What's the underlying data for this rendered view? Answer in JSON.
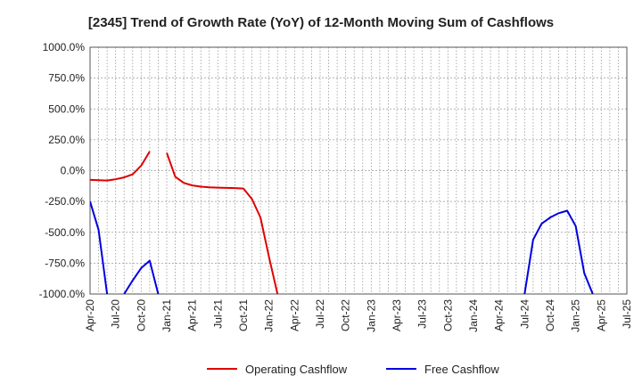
{
  "chart_data": {
    "type": "line",
    "title": "[2345]  Trend of Growth Rate (YoY) of 12-Month Moving Sum of Cashflows",
    "xlabel": "",
    "ylabel": "",
    "ylim": [
      -1000,
      1000
    ],
    "y_ticks": [
      1000,
      750,
      500,
      250,
      0,
      -250,
      -500,
      -750,
      -1000
    ],
    "y_tick_labels": [
      "1000.0%",
      "750.0%",
      "500.0%",
      "250.0%",
      "0.0%",
      "-250.0%",
      "-500.0%",
      "-750.0%",
      "-1000.0%"
    ],
    "x_tick_labels": [
      "Apr-20",
      "Jul-20",
      "Oct-20",
      "Jan-21",
      "Apr-21",
      "Jul-21",
      "Oct-21",
      "Jan-22",
      "Apr-22",
      "Jul-22",
      "Oct-22",
      "Jan-23",
      "Apr-23",
      "Jul-23",
      "Oct-23",
      "Jan-24",
      "Apr-24",
      "Jul-24",
      "Oct-24",
      "Jan-25",
      "Apr-25",
      "Jul-25"
    ],
    "x_range": [
      "Apr-20",
      "Jul-25"
    ],
    "grid": true,
    "legend_position": "bottom",
    "series": [
      {
        "name": "Operating Cashflow",
        "color": "#e00000",
        "points": [
          [
            "Apr-20",
            -75
          ],
          [
            "May-20",
            -78
          ],
          [
            "Jun-20",
            -80
          ],
          [
            "Jul-20",
            -70
          ],
          [
            "Aug-20",
            -55
          ],
          [
            "Sep-20",
            -30
          ],
          [
            "Oct-20",
            40
          ],
          [
            "Nov-20",
            155
          ],
          [
            "Dec-20",
            null
          ],
          [
            "Jan-21",
            145
          ],
          [
            "Feb-21",
            -50
          ],
          [
            "Mar-21",
            -100
          ],
          [
            "Apr-21",
            -120
          ],
          [
            "May-21",
            -130
          ],
          [
            "Jun-21",
            -135
          ],
          [
            "Jul-21",
            -138
          ],
          [
            "Aug-21",
            -140
          ],
          [
            "Sep-21",
            -142
          ],
          [
            "Oct-21",
            -145
          ],
          [
            "Nov-21",
            -230
          ],
          [
            "Dec-21",
            -380
          ],
          [
            "Jan-22",
            -700
          ],
          [
            "Feb-22",
            -1000
          ]
        ]
      },
      {
        "name": "Free Cashflow",
        "color": "#0000e0",
        "points": [
          [
            "Apr-20",
            -250
          ],
          [
            "May-20",
            -480
          ],
          [
            "Jun-20",
            -1000
          ],
          [
            "Jul-20",
            null
          ],
          [
            "Aug-20",
            -1000
          ],
          [
            "Sep-20",
            -890
          ],
          [
            "Oct-20",
            -790
          ],
          [
            "Nov-20",
            -730
          ],
          [
            "Dec-20",
            -1000
          ],
          [
            "Jan-21",
            null
          ],
          [
            "Jul-24",
            -1000
          ],
          [
            "Aug-24",
            -560
          ],
          [
            "Sep-24",
            -430
          ],
          [
            "Oct-24",
            -380
          ],
          [
            "Nov-24",
            -345
          ],
          [
            "Dec-24",
            -325
          ],
          [
            "Jan-25",
            -450
          ],
          [
            "Feb-25",
            -830
          ],
          [
            "Mar-25",
            -1000
          ]
        ]
      }
    ]
  }
}
